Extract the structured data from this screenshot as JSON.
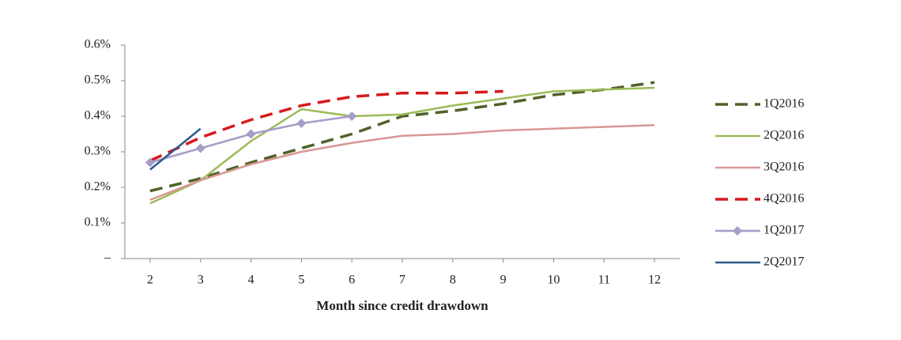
{
  "chart_data": {
    "type": "line",
    "x_label": "Month since credit drawdown",
    "x": [
      2,
      3,
      4,
      5,
      6,
      7,
      8,
      9,
      10,
      11,
      12
    ],
    "series": [
      {
        "name": "1Q2016",
        "color": "#4f6228",
        "dashed": true,
        "values": [
          0.19,
          0.225,
          0.27,
          0.31,
          0.35,
          0.4,
          0.415,
          0.435,
          0.46,
          0.475,
          0.495
        ]
      },
      {
        "name": "2Q2016",
        "color": "#9bbb59",
        "values": [
          0.155,
          0.22,
          0.33,
          0.42,
          0.4,
          0.405,
          0.43,
          0.45,
          0.47,
          0.475,
          0.48
        ]
      },
      {
        "name": "3Q2016",
        "color": "#d99694",
        "values": [
          0.165,
          0.22,
          0.265,
          0.3,
          0.325,
          0.345,
          0.35,
          0.36,
          0.365,
          0.37,
          0.375
        ]
      },
      {
        "name": "4Q2016",
        "color": "#d7191c",
        "dashed": true,
        "values": [
          0.275,
          0.34,
          0.39,
          0.43,
          0.455,
          0.465,
          0.465,
          0.47,
          null,
          null,
          null
        ]
      },
      {
        "name": "1Q2017",
        "color": "#a89cc8",
        "marker": "diamond",
        "values": [
          0.27,
          0.31,
          0.35,
          0.38,
          0.4,
          null,
          null,
          null,
          null,
          null,
          null
        ]
      },
      {
        "name": "2Q2017",
        "color": "#2e5c8a",
        "values": [
          0.25,
          0.365,
          null,
          null,
          null,
          null,
          null,
          null,
          null,
          null,
          null
        ]
      }
    ],
    "xlim": [
      1.5,
      12.5
    ],
    "xticks": [
      2,
      3,
      4,
      5,
      6,
      7,
      8,
      9,
      10,
      11,
      12
    ],
    "ylim": [
      0,
      0.6
    ],
    "yticks": [
      {
        "value": 0,
        "label": "–"
      },
      {
        "value": 0.1,
        "label": "0.1%"
      },
      {
        "value": 0.2,
        "label": "0.2%"
      },
      {
        "value": 0.3,
        "label": "0.3%"
      },
      {
        "value": 0.4,
        "label": "0.4%"
      },
      {
        "value": 0.5,
        "label": "0.5%"
      },
      {
        "value": 0.6,
        "label": "0.6%"
      }
    ],
    "grid": false,
    "legend": "right"
  }
}
